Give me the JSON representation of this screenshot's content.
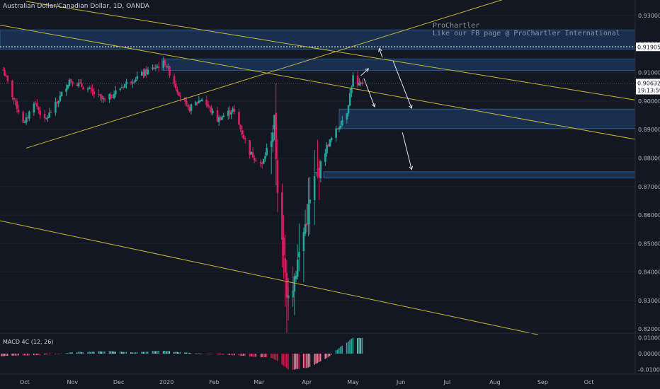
{
  "header": {
    "title": "Australian Dollar/Canadian Dollar, 1D, OANDA"
  },
  "watermark": {
    "line1": "ProChartler",
    "line2": "Like our FB page @ ProChartler International"
  },
  "macd": {
    "title": "MACD 4C (12, 26)",
    "ticks": [
      "0.01000",
      "0.00000",
      "-0.01000"
    ],
    "ylim": [
      -0.0125,
      0.0125
    ]
  },
  "colors": {
    "background": "#131722",
    "up": "#26a69a",
    "down": "#d9205e",
    "trendline": "#c9b73a",
    "zone_fill": "#1a3457",
    "zone_border": "#2c5b8d",
    "grid": "#1c2030",
    "price_tag": "#ffffff",
    "macd_up_strong": "#26a69a",
    "macd_down_strong": "#c21d45"
  },
  "price_axis": {
    "ticks": [
      "0.93000",
      "0.92000",
      "0.91000",
      "0.90000",
      "0.89000",
      "0.88000",
      "0.87000",
      "0.86000",
      "0.85000",
      "0.84000",
      "0.83000",
      "0.82000"
    ],
    "ylim": [
      0.8188,
      0.9355
    ],
    "dotted_level": "0.91905",
    "current_price": "0.90632",
    "countdown": "19:13:59"
  },
  "time_axis": {
    "labels": [
      "Oct",
      "Nov",
      "Dec",
      "2020",
      "Feb",
      "Mar",
      "Apr",
      "May",
      "Jun",
      "Jul",
      "Aug",
      "Sep",
      "Oct"
    ]
  },
  "chart_data": {
    "type": "candlestick",
    "symbol": "AUDCAD",
    "timeframe": "1D",
    "source": "OANDA",
    "x_domain_months": [
      "2019-10",
      "2019-11",
      "2019-12",
      "2020-01",
      "2020-02",
      "2020-03",
      "2020-04",
      "2020-05",
      "2020-06",
      "2020-07",
      "2020-08",
      "2020-09",
      "2020-10"
    ],
    "ylim": [
      0.8188,
      0.9355
    ],
    "path": [
      [
        "2019-09-17",
        0.911
      ],
      [
        "2019-09-25",
        0.899
      ],
      [
        "2019-10-01",
        0.892
      ],
      [
        "2019-10-07",
        0.9
      ],
      [
        "2019-10-14",
        0.893
      ],
      [
        "2019-10-22",
        0.8995
      ],
      [
        "2019-10-30",
        0.9075
      ],
      [
        "2019-11-10",
        0.9045
      ],
      [
        "2019-11-22",
        0.9
      ],
      [
        "2019-12-05",
        0.906
      ],
      [
        "2019-12-18",
        0.91
      ],
      [
        "2019-12-31",
        0.9135
      ],
      [
        "2020-01-08",
        0.904
      ],
      [
        "2020-01-15",
        0.897
      ],
      [
        "2020-01-24",
        0.901
      ],
      [
        "2020-02-03",
        0.8935
      ],
      [
        "2020-02-13",
        0.897
      ],
      [
        "2020-02-24",
        0.882
      ],
      [
        "2020-03-03",
        0.8775
      ],
      [
        "2020-03-11",
        0.892
      ],
      [
        "2020-03-13",
        0.87
      ],
      [
        "2020-03-16",
        0.849
      ],
      [
        "2020-03-19",
        0.834
      ],
      [
        "2020-03-23",
        0.836
      ],
      [
        "2020-03-30",
        0.854
      ],
      [
        "2020-04-06",
        0.872
      ],
      [
        "2020-04-14",
        0.884
      ],
      [
        "2020-04-21",
        0.8905
      ],
      [
        "2020-04-27",
        0.8965
      ],
      [
        "2020-05-01",
        0.9085
      ],
      [
        "2020-05-04",
        0.905
      ],
      [
        "2020-05-07",
        0.9063
      ]
    ],
    "zones": [
      {
        "from": "2019-09-15",
        "to": "2020-10-31",
        "low": 0.9182,
        "high": 0.925
      },
      {
        "from": "2019-12-29",
        "to": "2020-10-31",
        "low": 0.9108,
        "high": 0.9148
      },
      {
        "from": "2020-04-22",
        "to": "2020-10-31",
        "low": 0.8904,
        "high": 0.8972
      },
      {
        "from": "2020-04-12",
        "to": "2020-10-31",
        "low": 0.873,
        "high": 0.8752
      }
    ],
    "trendlines": [
      {
        "from": [
          "2019-10-02",
          0.8835
        ],
        "to": [
          "2020-08-29",
          0.9395
        ]
      },
      {
        "from": [
          "2019-10-02",
          0.935
        ],
        "to": [
          "2020-10-31",
          0.9004
        ]
      },
      {
        "from": [
          "2019-09-15",
          0.9267
        ],
        "to": [
          "2020-10-31",
          0.8866
        ]
      },
      {
        "from": [
          "2019-09-15",
          0.858
        ],
        "to": [
          "2020-08-29",
          0.818
        ]
      }
    ],
    "projection_arrows": [
      {
        "from": [
          "2020-05-06",
          0.9089
        ],
        "to": [
          "2020-05-11",
          0.9114
        ]
      },
      {
        "from": [
          "2020-05-20",
          0.9153
        ],
        "to": [
          "2020-05-18",
          0.9185
        ]
      },
      {
        "from": [
          "2020-05-08",
          0.908
        ],
        "to": [
          "2020-05-15",
          0.898
        ]
      },
      {
        "from": [
          "2020-05-27",
          0.914
        ],
        "to": [
          "2020-06-08",
          0.8975
        ]
      },
      {
        "from": [
          "2020-06-02",
          0.889
        ],
        "to": [
          "2020-06-08",
          0.876
        ]
      }
    ],
    "macd_path": [
      [
        "2019-09-15",
        -0.0015
      ],
      [
        "2019-10-10",
        -0.001
      ],
      [
        "2019-11-05",
        0.001
      ],
      [
        "2019-11-25",
        0.0015
      ],
      [
        "2019-12-10",
        0.0008
      ],
      [
        "2019-12-28",
        0.0018
      ],
      [
        "2020-01-15",
        0.0005
      ],
      [
        "2020-02-05",
        -0.0005
      ],
      [
        "2020-02-25",
        -0.0018
      ],
      [
        "2020-03-10",
        -0.0028
      ],
      [
        "2020-03-21",
        -0.0105
      ],
      [
        "2020-04-03",
        -0.0085
      ],
      [
        "2020-04-14",
        -0.003
      ],
      [
        "2020-04-22",
        0.0035
      ],
      [
        "2020-05-01",
        0.01
      ],
      [
        "2020-05-07",
        0.0098
      ]
    ]
  }
}
